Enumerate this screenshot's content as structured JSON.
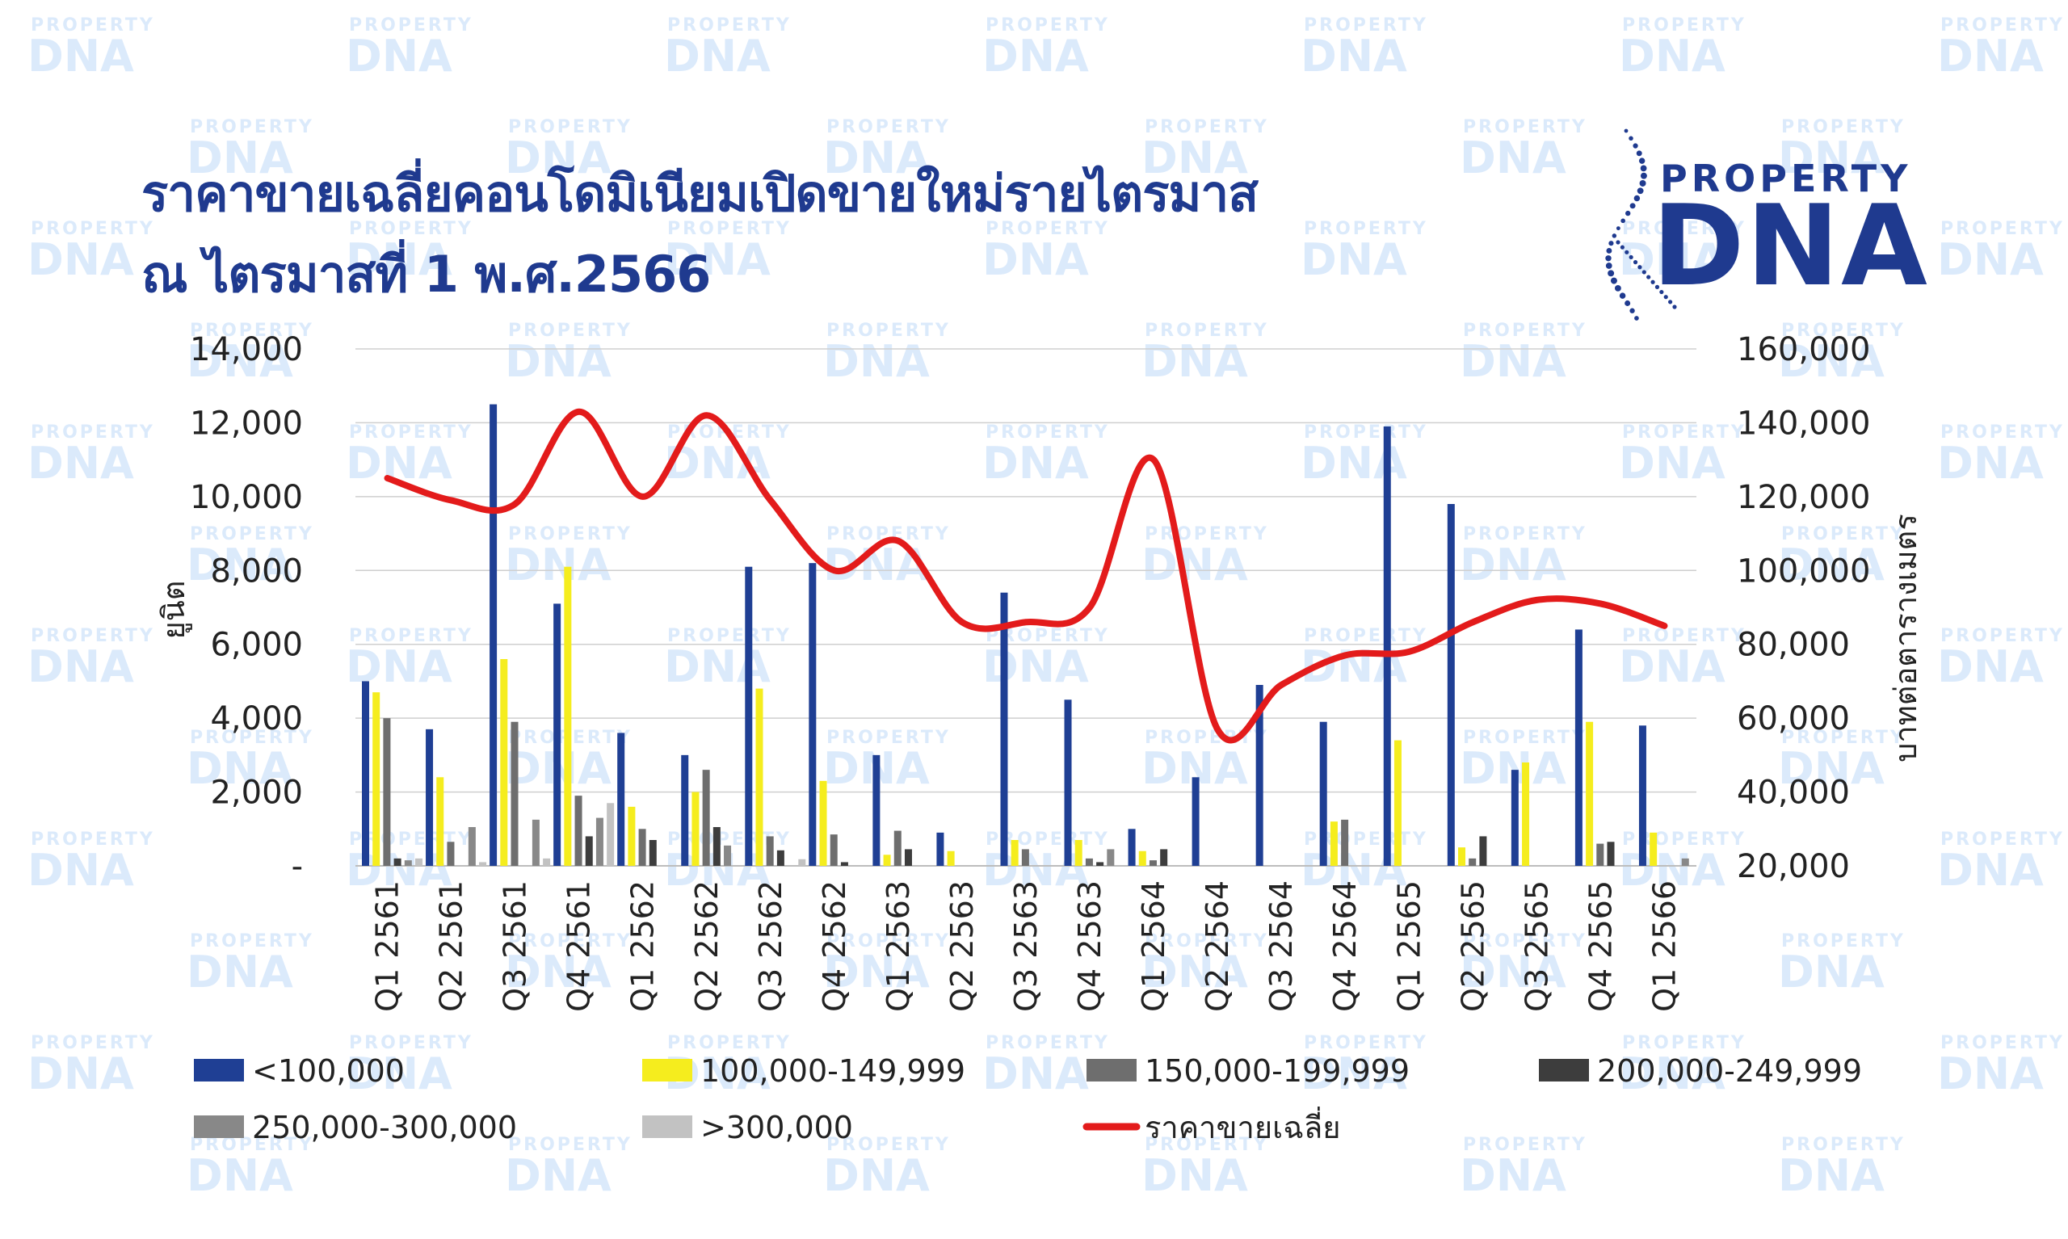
{
  "title": {
    "line1": "ราคาขายเฉลี่ยคอนโดมิเนียมเปิดขายใหม่รายไตรมาส",
    "line2": "ณ ไตรมาสที่ 1 พ.ศ.2566"
  },
  "logo": {
    "top": "PROPERTY",
    "big": "DNA"
  },
  "watermark": {
    "small": "PROPERTY",
    "big": "DNA"
  },
  "colors": {
    "title": "#1f3a8f",
    "watermark": "#dbeafb",
    "lt100k": "#1f3f94",
    "r100_149": "#f5ed1e",
    "r150_199": "#6e6e6e",
    "r200_249": "#3d3d3d",
    "r250_300": "#888888",
    "gt300": "#c2c2c2",
    "price": "#e31b1b"
  },
  "chart_data": {
    "type": "bar",
    "categories": [
      "Q1 2561",
      "Q2 2561",
      "Q3 2561",
      "Q4 2561",
      "Q1 2562",
      "Q2 2562",
      "Q3 2562",
      "Q4 2562",
      "Q1 2563",
      "Q2 2563",
      "Q3 2563",
      "Q4 2563",
      "Q1 2564",
      "Q2 2564",
      "Q3 2564",
      "Q4 2564",
      "Q1 2565",
      "Q2 2565",
      "Q3 2565",
      "Q4 2565",
      "Q1 2566"
    ],
    "y_left": {
      "label": "ยูนิต",
      "ticks": [
        "-",
        "2,000",
        "4,000",
        "6,000",
        "8,000",
        "10,000",
        "12,000",
        "14,000"
      ],
      "min": 0,
      "max": 14000,
      "step": 2000
    },
    "y_right": {
      "label": "บาทต่อตารางเมตร",
      "ticks": [
        "20,000",
        "40,000",
        "60,000",
        "80,000",
        "100,000",
        "120,000",
        "140,000",
        "160,000"
      ],
      "min": 20000,
      "max": 160000,
      "step": 20000
    },
    "grid": true,
    "legend_position": "bottom",
    "series": [
      {
        "name": "<100,000",
        "color_key": "lt100k",
        "values": [
          5000,
          3700,
          12500,
          7100,
          3600,
          3000,
          8100,
          8200,
          3000,
          900,
          7400,
          4500,
          1000,
          2400,
          4900,
          3900,
          11900,
          9800,
          2600,
          6400,
          3800
        ]
      },
      {
        "name": "100,000-149,999",
        "color_key": "r100_149",
        "values": [
          4700,
          2400,
          5600,
          8100,
          1600,
          2000,
          4800,
          2300,
          300,
          400,
          700,
          700,
          400,
          0,
          0,
          1200,
          3400,
          500,
          2800,
          3900,
          900
        ]
      },
      {
        "name": "150,000-199,999",
        "color_key": "r150_199",
        "values": [
          4000,
          650,
          3900,
          1900,
          1000,
          2600,
          800,
          850,
          950,
          0,
          450,
          200,
          150,
          0,
          0,
          1250,
          0,
          200,
          0,
          600,
          0
        ]
      },
      {
        "name": "200,000-249,999",
        "color_key": "r200_249",
        "values": [
          200,
          0,
          0,
          800,
          700,
          1050,
          420,
          100,
          450,
          0,
          0,
          100,
          450,
          0,
          0,
          0,
          0,
          800,
          0,
          650,
          0
        ]
      },
      {
        "name": "250,000-300,000",
        "color_key": "r250_300",
        "values": [
          150,
          1050,
          1250,
          1300,
          0,
          550,
          0,
          0,
          0,
          0,
          0,
          450,
          0,
          0,
          0,
          0,
          0,
          0,
          0,
          0,
          200
        ]
      },
      {
        "name": ">300,000",
        "color_key": "gt300",
        "values": [
          200,
          100,
          200,
          1700,
          0,
          0,
          180,
          0,
          0,
          0,
          0,
          0,
          0,
          0,
          0,
          0,
          0,
          0,
          0,
          0,
          0
        ]
      }
    ],
    "line_series": {
      "name": "ราคาขายเฉลี่ย",
      "color_key": "price",
      "axis": "right",
      "values": [
        125000,
        119000,
        118000,
        143000,
        120000,
        142000,
        119000,
        100000,
        108000,
        86000,
        86000,
        90000,
        130000,
        57000,
        69000,
        77000,
        78000,
        86000,
        92000,
        91000,
        85000
      ]
    }
  }
}
